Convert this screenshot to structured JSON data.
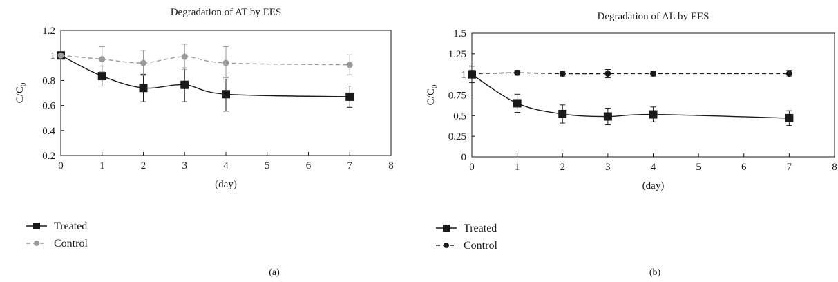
{
  "chart_data": [
    {
      "panel_label": "(a)",
      "type": "line",
      "title": "Degradation of AT by EES",
      "xlabel": "(day)",
      "ylabel": "C/C0",
      "xlim": [
        0,
        8
      ],
      "ylim": [
        0.2,
        1.2
      ],
      "xticks": [
        "0",
        "1",
        "2",
        "3",
        "4",
        "5",
        "6",
        "7",
        "8"
      ],
      "yticks": [
        "0.2",
        "0.4",
        "0.6",
        "0.8",
        "1",
        "1.2"
      ],
      "legend_position": "bottom-left",
      "series": [
        {
          "name": "Treated",
          "color": "#1a1a1a",
          "marker": "square",
          "line": "solid",
          "x": [
            0,
            1,
            2,
            3,
            4,
            7
          ],
          "y": [
            1.0,
            0.835,
            0.74,
            0.765,
            0.69,
            0.67
          ],
          "err": [
            0.0,
            0.08,
            0.11,
            0.135,
            0.135,
            0.085
          ]
        },
        {
          "name": "Control",
          "color": "#9a9a9a",
          "marker": "circle",
          "line": "dashed",
          "x": [
            0,
            1,
            2,
            3,
            4,
            7
          ],
          "y": [
            1.0,
            0.97,
            0.94,
            0.99,
            0.94,
            0.925
          ],
          "err": [
            0.0,
            0.1,
            0.1,
            0.1,
            0.13,
            0.08
          ]
        }
      ]
    },
    {
      "panel_label": "(b)",
      "type": "line",
      "title": "Degradation of AL by EES",
      "xlabel": "(day)",
      "ylabel": "C/C0",
      "xlim": [
        0,
        8
      ],
      "ylim": [
        0,
        1.5
      ],
      "xticks": [
        "0",
        "1",
        "2",
        "3",
        "4",
        "5",
        "6",
        "7",
        "8"
      ],
      "yticks": [
        "0",
        "0.25",
        "0.5",
        "0.75",
        "1",
        "1.25",
        "1.5"
      ],
      "legend_position": "bottom-left",
      "series": [
        {
          "name": "Treated",
          "color": "#1a1a1a",
          "marker": "square",
          "line": "solid",
          "x": [
            0,
            1,
            2,
            3,
            4,
            7
          ],
          "y": [
            1.0,
            0.65,
            0.52,
            0.49,
            0.515,
            0.47
          ],
          "err": [
            0.1,
            0.11,
            0.11,
            0.1,
            0.09,
            0.09
          ]
        },
        {
          "name": "Control",
          "color": "#1a1a1a",
          "marker": "circle",
          "line": "dashed",
          "x": [
            0,
            1,
            2,
            3,
            4,
            7
          ],
          "y": [
            1.01,
            1.02,
            1.01,
            1.01,
            1.01,
            1.01
          ],
          "err": [
            0.04,
            0.03,
            0.03,
            0.05,
            0.03,
            0.04
          ]
        }
      ]
    }
  ]
}
